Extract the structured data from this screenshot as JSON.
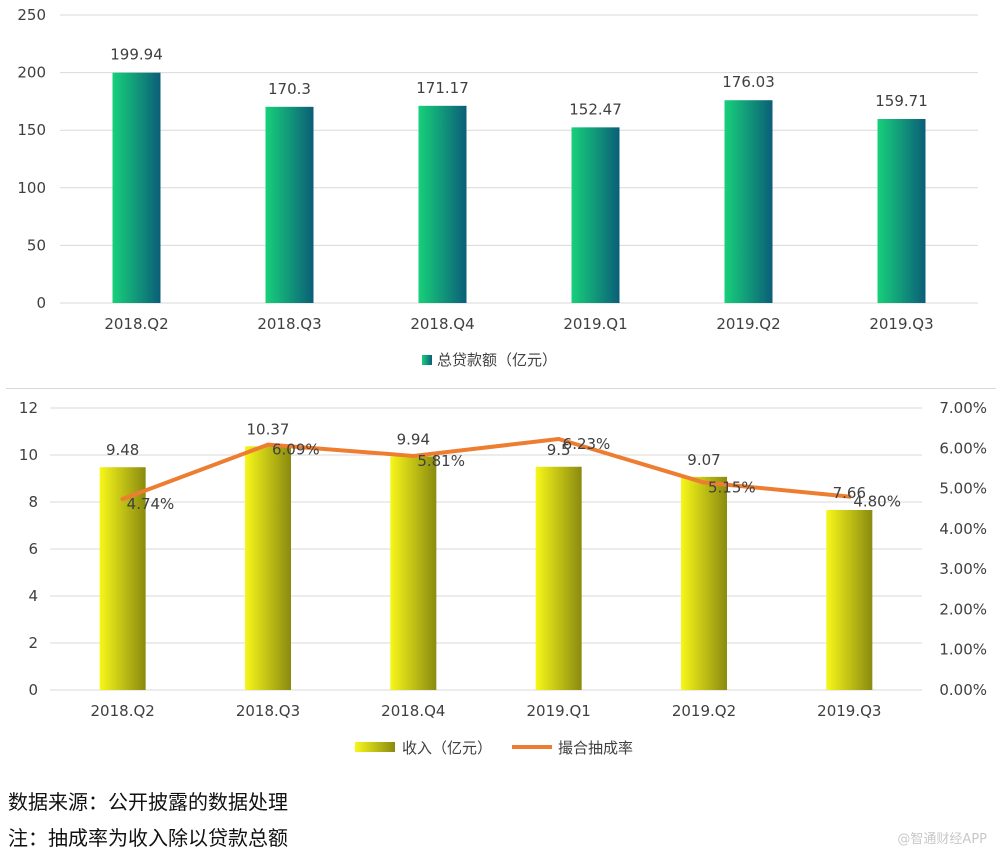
{
  "chart_data": [
    {
      "type": "bar",
      "categories": [
        "2018.Q2",
        "2018.Q3",
        "2018.Q4",
        "2019.Q1",
        "2019.Q2",
        "2019.Q3"
      ],
      "series": [
        {
          "name": "总贷款额（亿元）",
          "values": [
            199.94,
            170.3,
            171.17,
            152.47,
            176.03,
            159.71
          ],
          "data_labels": [
            "199.94",
            "170.3",
            "171.17",
            "152.47",
            "176.03",
            "159.71"
          ]
        }
      ],
      "ylim": [
        0,
        250
      ],
      "yticks": [
        "0",
        "50",
        "100",
        "150",
        "200",
        "250"
      ],
      "grid": true,
      "legend": "bottom",
      "colors": {
        "bar_light": "#17d07a",
        "bar_dark": "#0b5e78"
      }
    },
    {
      "type": "bar",
      "categories": [
        "2018.Q2",
        "2018.Q3",
        "2018.Q4",
        "2019.Q1",
        "2019.Q2",
        "2019.Q3"
      ],
      "series": [
        {
          "name": "收入（亿元）",
          "type": "bar",
          "axis": "left",
          "values": [
            9.48,
            10.37,
            9.94,
            9.5,
            9.07,
            7.66
          ],
          "data_labels": [
            "9.48",
            "10.37",
            "9.94",
            "9.5",
            "9.07",
            "7.66"
          ]
        },
        {
          "name": "撮合抽成率",
          "type": "line",
          "axis": "right",
          "values": [
            4.74,
            6.09,
            5.81,
            6.23,
            5.15,
            4.8
          ],
          "data_labels": [
            "4.74%",
            "6.09%",
            "5.81%",
            "6.23%",
            "5.15%",
            "4.80%"
          ]
        }
      ],
      "ylim": [
        0,
        12
      ],
      "yticks": [
        "0",
        "2",
        "4",
        "6",
        "8",
        "10",
        "12"
      ],
      "y2lim": [
        0,
        7
      ],
      "y2ticks": [
        "0.00%",
        "1.00%",
        "2.00%",
        "3.00%",
        "4.00%",
        "5.00%",
        "6.00%",
        "7.00%"
      ],
      "grid": true,
      "legend": "bottom",
      "colors": {
        "bar_light": "#f7f71a",
        "bar_dark": "#8a8a10",
        "line": "#ed7d31"
      }
    }
  ],
  "notes": {
    "source": "数据来源：公开披露的数据处理",
    "remark": "注：抽成率为收入除以贷款总额"
  },
  "watermark": "@智通财经APP"
}
